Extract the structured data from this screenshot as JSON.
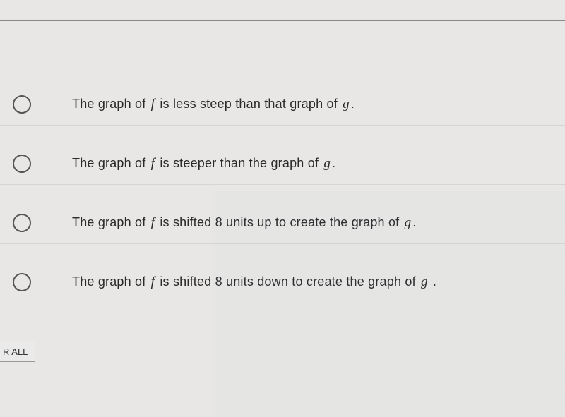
{
  "colors": {
    "background": "#e8e7e5",
    "divider": "#888888",
    "radio_border": "#555555",
    "text": "#2a2a2a",
    "button_border": "#999999"
  },
  "typography": {
    "option_fontsize": 18,
    "button_fontsize": 13,
    "math_var_fontsize": 19
  },
  "options": [
    {
      "pre1": "The graph of ",
      "var1": "f",
      "mid": " is less steep than that graph of ",
      "var2": "g",
      "post": "."
    },
    {
      "pre1": "The graph of ",
      "var1": "f",
      "mid": " is steeper than the graph of ",
      "var2": "g",
      "post": "."
    },
    {
      "pre1": "The graph of ",
      "var1": "f",
      "mid": " is shifted 8 units up to create the graph of ",
      "var2": "g",
      "post": "."
    },
    {
      "pre1": "The graph of ",
      "var1": "f",
      "mid": " is shifted 8 units down to create the graph of ",
      "var2": "g",
      "post": " ."
    }
  ],
  "clear_button_label": "R ALL"
}
